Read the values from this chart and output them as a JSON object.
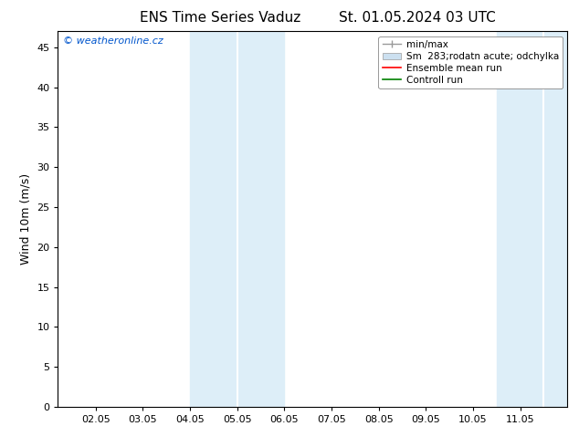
{
  "title_left": "ENS Time Series Vaduz",
  "title_right": "St. 01.05.2024 03 UTC",
  "ylabel": "Wind 10m (m/s)",
  "ylim": [
    0,
    47
  ],
  "yticks": [
    0,
    5,
    10,
    15,
    20,
    25,
    30,
    35,
    40,
    45
  ],
  "xtick_labels": [
    "02.05",
    "03.05",
    "04.05",
    "05.05",
    "06.05",
    "07.05",
    "08.05",
    "09.05",
    "10.05",
    "11.05"
  ],
  "xtick_positions": [
    1.0,
    2.0,
    3.0,
    4.0,
    5.0,
    6.0,
    7.0,
    8.0,
    9.0,
    10.0
  ],
  "xlim": [
    0.2,
    11.0
  ],
  "band_color": "#ddeef8",
  "band1_start": 3.0,
  "band1_end": 5.0,
  "band1_mid": 4.0,
  "band2_start": 9.5,
  "band2_end": 11.05,
  "band2_mid": 10.5,
  "watermark_text": "© weatheronline.cz",
  "watermark_color": "#0055cc",
  "background_color": "#ffffff",
  "title_fontsize": 11,
  "ylabel_fontsize": 9,
  "tick_fontsize": 8,
  "legend_fontsize": 7.5,
  "grid_color": "#dddddd",
  "legend_minmax_color": "#999999",
  "legend_spread_color": "#cce0f0",
  "legend_mean_color": "#ff0000",
  "legend_control_color": "#008000"
}
